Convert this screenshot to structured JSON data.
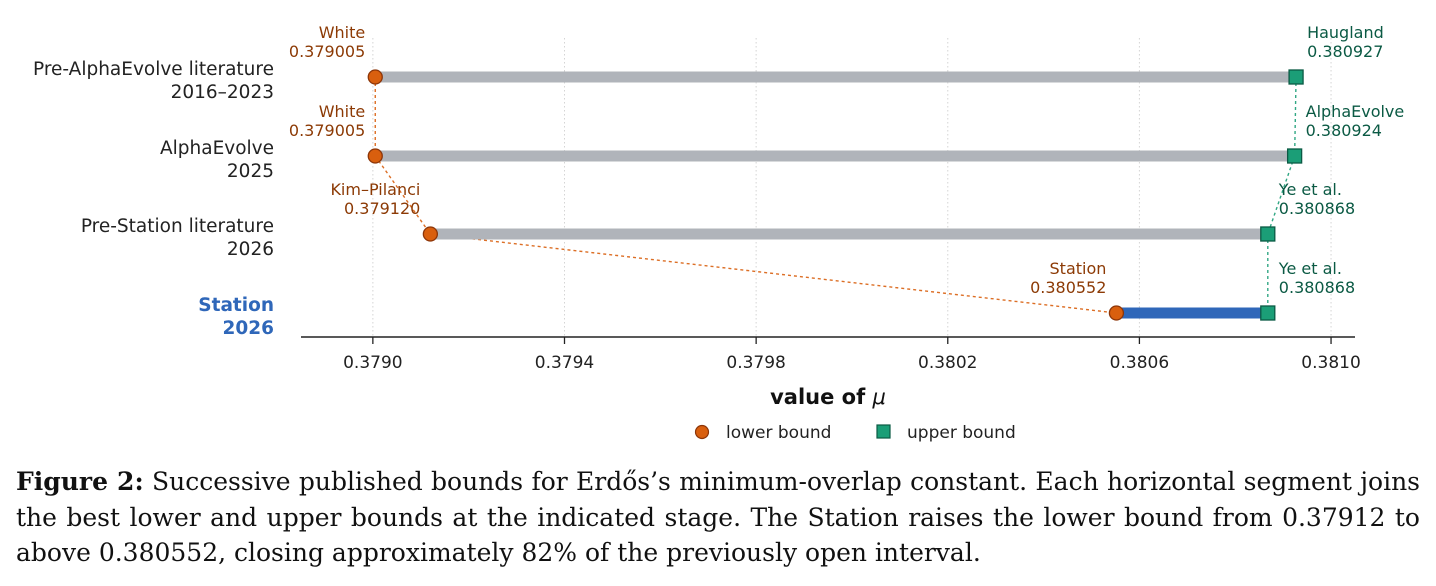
{
  "chart_data": {
    "type": "range-dumbbell",
    "xlabel": "value of",
    "xlabel_symbol": "μ",
    "xlim": [
      0.37885,
      0.38105
    ],
    "xticks": [
      0.379,
      0.3794,
      0.3798,
      0.3802,
      0.3806,
      0.381
    ],
    "xtick_labels": [
      "0.3790",
      "0.3794",
      "0.3798",
      "0.3802",
      "0.3806",
      "0.3810"
    ],
    "grid": "vertical dotted",
    "legend_position": "bottom-center",
    "legend": [
      {
        "label": "lower bound",
        "marker": "circle",
        "color": "#d95f0e"
      },
      {
        "label": "upper bound",
        "marker": "square",
        "color": "#1b9e77"
      }
    ],
    "rows": [
      {
        "label_line1": "Pre-AlphaEvolve literature",
        "label_line2": "2016–2023",
        "highlight": false,
        "lower": 0.379005,
        "lower_source": "White",
        "lower_text": "0.379005",
        "upper": 0.380927,
        "upper_source": "Haugland",
        "upper_text": "0.380927"
      },
      {
        "label_line1": "AlphaEvolve",
        "label_line2": "2025",
        "highlight": false,
        "lower": 0.379005,
        "lower_source": "White",
        "lower_text": "0.379005",
        "upper": 0.380924,
        "upper_source": "AlphaEvolve",
        "upper_text": "0.380924"
      },
      {
        "label_line1": "Pre-Station literature",
        "label_line2": "2026",
        "highlight": false,
        "lower": 0.37912,
        "lower_source": "Kim–Pilanci",
        "lower_text": "0.379120",
        "upper": 0.380868,
        "upper_source": "Ye et al.",
        "upper_text": "0.380868"
      },
      {
        "label_line1": "Station",
        "label_line2": "2026",
        "highlight": true,
        "lower": 0.380552,
        "lower_source": "Station",
        "lower_text": "0.380552",
        "upper": 0.380868,
        "upper_source": "Ye et al.",
        "upper_text": "0.380868"
      }
    ],
    "colors": {
      "lower": "#d95f0e",
      "lower_edge": "#8c3508",
      "upper": "#1b9e77",
      "upper_edge": "#0b5a44",
      "bar": "#b0b4ba",
      "bar_highlight": "#2f67b9",
      "lower_text": "#8c3a05",
      "upper_text": "#0b5a44",
      "label_highlight": "#2f67b9",
      "label": "#222222"
    }
  },
  "caption": {
    "prefix": "Figure 2:",
    "text": " Successive published bounds for Erdős’s minimum-overlap constant. Each horizontal segment joins the best lower and upper bounds at the indicated stage. The Station raises the lower bound from 0.37912 to above 0.380552, closing approximately 82% of the previously open interval."
  }
}
